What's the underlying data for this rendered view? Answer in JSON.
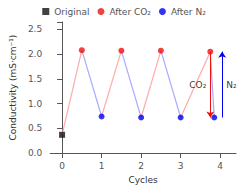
{
  "chart_data": {
    "type": "scatter",
    "xlabel": "Cycles",
    "ylabel": "Conductivity (mS·cm⁻¹)",
    "xlim": [
      -0.3,
      4.4
    ],
    "ylim": [
      0.0,
      2.65
    ],
    "xticks": [
      0,
      1,
      2,
      3,
      4
    ],
    "yticks": [
      {
        "value": 0.0,
        "label": "0.0"
      },
      {
        "value": 0.5,
        "label": "0.5"
      },
      {
        "value": 1.0,
        "label": "1.0"
      },
      {
        "value": 1.5,
        "label": "1.5"
      },
      {
        "value": 2.0,
        "label": "2.0"
      },
      {
        "value": 2.5,
        "label": "2.5"
      }
    ],
    "grid": false,
    "legend": "top",
    "series": [
      {
        "name": "Original",
        "color": "#111111",
        "marker": "square",
        "x": [
          0
        ],
        "values": [
          0.37
        ]
      },
      {
        "name": "After CO₂",
        "color": "#ee1111",
        "marker": "circle",
        "connector_color": "#ffaaaa",
        "x": [
          0.5,
          1.5,
          2.5,
          3.75
        ],
        "values": [
          2.08,
          2.07,
          2.07,
          2.05
        ]
      },
      {
        "name": "After N₂",
        "color": "#0000ee",
        "marker": "circle",
        "connector_color": "#aaaaff",
        "x": [
          1.0,
          2.0,
          3.0,
          3.85
        ],
        "values": [
          0.74,
          0.72,
          0.72,
          0.72
        ]
      }
    ],
    "annotations": [
      {
        "text": "CO₂",
        "x": 3.75,
        "y_from": 2.05,
        "y_to": 0.72,
        "color": "#ee1111"
      },
      {
        "text": "N₂",
        "x": 4.05,
        "y_from": 0.72,
        "y_to": 2.05,
        "color": "#0000ee"
      }
    ]
  }
}
